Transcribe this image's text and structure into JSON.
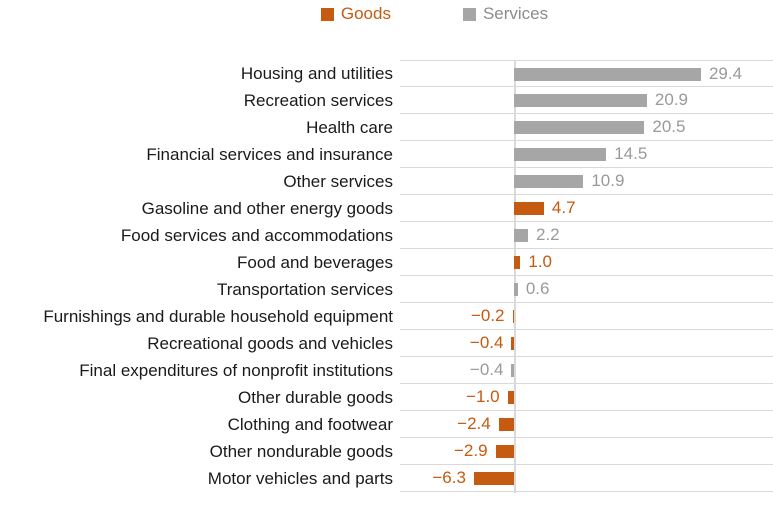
{
  "legend": {
    "items": [
      {
        "label": "Goods",
        "color": "#c55a11"
      },
      {
        "label": "Services",
        "color": "#a6a6a6"
      }
    ]
  },
  "chart_data": {
    "type": "bar",
    "orientation": "horizontal",
    "title": "",
    "xlabel": "",
    "ylabel": "",
    "xlim": [
      -18,
      40
    ],
    "grid": "row separators, light gray",
    "legend_position": "top center",
    "categories": [
      "Housing and utilities",
      "Recreation services",
      "Health care",
      "Financial services and insurance",
      "Other services",
      "Gasoline and other energy goods",
      "Food services and accommodations",
      "Food and beverages",
      "Transportation services",
      "Furnishings and durable household equipment",
      "Recreational goods and vehicles",
      "Final expenditures of nonprofit institutions",
      "Other durable goods",
      "Clothing and footwear",
      "Other nondurable goods",
      "Motor vehicles and parts"
    ],
    "values": [
      29.4,
      20.9,
      20.5,
      14.5,
      10.9,
      4.7,
      2.2,
      1.0,
      0.6,
      -0.2,
      -0.4,
      -0.4,
      -1.0,
      -2.4,
      -2.9,
      -6.3
    ],
    "groups": [
      "Services",
      "Services",
      "Services",
      "Services",
      "Services",
      "Goods",
      "Services",
      "Goods",
      "Services",
      "Goods",
      "Goods",
      "Services",
      "Goods",
      "Goods",
      "Goods",
      "Goods"
    ],
    "value_labels": [
      "29.4",
      "20.9",
      "20.5",
      "14.5",
      "10.9",
      "4.7",
      "2.2",
      "1.0",
      "0.6",
      "−0.2",
      "−0.4",
      "−0.4",
      "−1.0",
      "−2.4",
      "−2.9",
      "−6.3"
    ],
    "colors": {
      "Goods": "#c55a11",
      "Services": "#a6a6a6"
    },
    "text_colors": {
      "Goods": "#c55a11",
      "Services": "#9a9a9a"
    }
  }
}
